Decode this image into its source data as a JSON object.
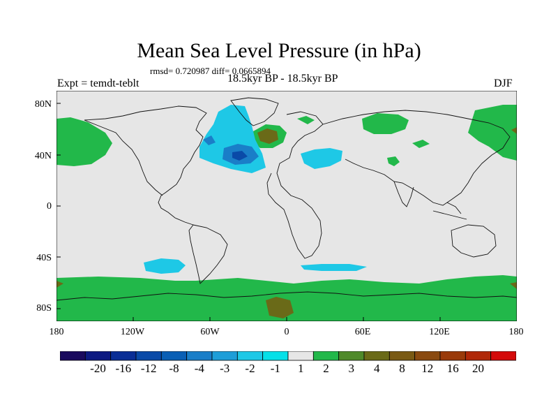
{
  "title": "Mean Sea Level Pressure (in hPa)",
  "stats": "rmsd= 0.720987 diff= 0.0665894",
  "experiment": "Expt = temdt-teblt",
  "period": "18.5kyr BP - 18.5kyr BP",
  "season": "DJF",
  "lat_ticks": [
    "80N",
    "40N",
    "0",
    "40S",
    "80S"
  ],
  "lon_ticks": [
    "180",
    "120W",
    "60W",
    "0",
    "60E",
    "120E",
    "180"
  ],
  "colorbar": {
    "labels": [
      "-20",
      "-16",
      "-12",
      "-8",
      "-4",
      "-3",
      "-2",
      "-1",
      "1",
      "2",
      "3",
      "4",
      "8",
      "12",
      "16",
      "20"
    ],
    "colors": [
      "#1a0a5e",
      "#0d1a82",
      "#0a2e96",
      "#0a4aa8",
      "#0a5fb5",
      "#1a7ec8",
      "#1e9ed8",
      "#1ec8e6",
      "#06e0e8",
      "#e6e6e6",
      "#22b84a",
      "#4f8a2a",
      "#6a6a18",
      "#7a5a14",
      "#8a4a10",
      "#9a3a0a",
      "#b02808",
      "#d40a0a"
    ]
  },
  "colors": {
    "background_field": "#e6e6e6",
    "coast": "#111111"
  }
}
